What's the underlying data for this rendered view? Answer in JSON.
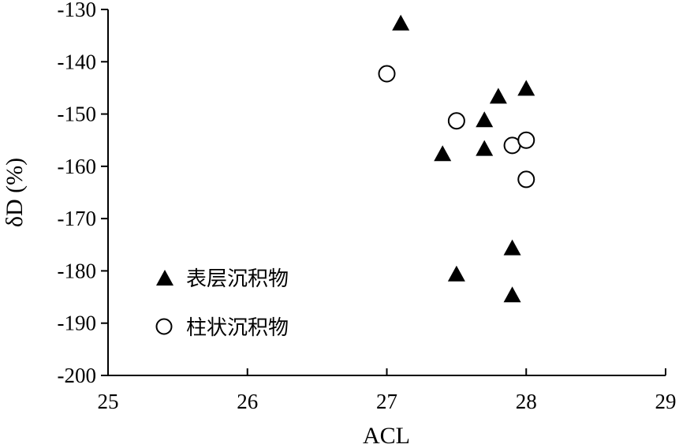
{
  "chart_data": {
    "type": "scatter",
    "xlabel": "ACL",
    "ylabel": "δD (%)",
    "xlim": [
      25,
      29
    ],
    "ylim": [
      -200,
      -130
    ],
    "xticks": [
      "25",
      "26",
      "27",
      "28",
      "29"
    ],
    "yticks": [
      "-130",
      "-140",
      "-150",
      "-160",
      "-170",
      "-180",
      "-190",
      "-200"
    ],
    "grid": false,
    "legend_position": "lower-left",
    "series": [
      {
        "name": "表层沉积物",
        "marker": "filled-triangle",
        "color": "#000000",
        "points": [
          {
            "x": 27.1,
            "y": -132.5
          },
          {
            "x": 28.0,
            "y": -145.0
          },
          {
            "x": 27.8,
            "y": -146.5
          },
          {
            "x": 27.7,
            "y": -151.0
          },
          {
            "x": 27.4,
            "y": -157.5
          },
          {
            "x": 27.7,
            "y": -156.5
          },
          {
            "x": 27.9,
            "y": -175.5
          },
          {
            "x": 27.5,
            "y": -180.5
          },
          {
            "x": 27.9,
            "y": -184.5
          }
        ]
      },
      {
        "name": "柱状沉积物",
        "marker": "open-circle",
        "color": "#000000",
        "points": [
          {
            "x": 27.0,
            "y": -142.3
          },
          {
            "x": 27.5,
            "y": -151.3
          },
          {
            "x": 27.9,
            "y": -156.0
          },
          {
            "x": 28.0,
            "y": -155.0
          },
          {
            "x": 28.0,
            "y": -162.5
          }
        ]
      }
    ]
  }
}
